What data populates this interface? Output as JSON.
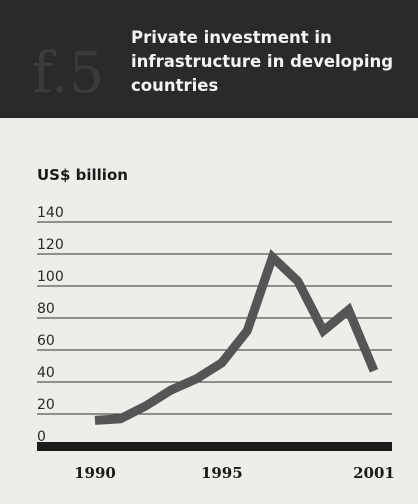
{
  "figure": {
    "label": "f.5"
  },
  "chart_data": {
    "type": "line",
    "title": "Private investment in infrastructure in developing countries",
    "ylabel": "US$ billion",
    "xlabel": "",
    "xlim": [
      1990,
      2001
    ],
    "ylim": [
      0,
      140
    ],
    "yticks": [
      0,
      20,
      40,
      60,
      80,
      100,
      120,
      140
    ],
    "xticks": [
      1990,
      1995,
      2001
    ],
    "grid": true,
    "series": [
      {
        "x": [
          1990,
          1991,
          1992,
          1993,
          1994,
          1995,
          1996,
          1997,
          1998,
          1999,
          2000,
          2001
        ],
        "values": [
          16,
          17,
          25,
          35,
          42,
          52,
          72,
          118,
          103,
          72,
          85,
          47
        ]
      }
    ],
    "colors": {
      "line": "#555555",
      "grid": "#2e2e2e",
      "baseline": "#1c1c1c"
    }
  }
}
